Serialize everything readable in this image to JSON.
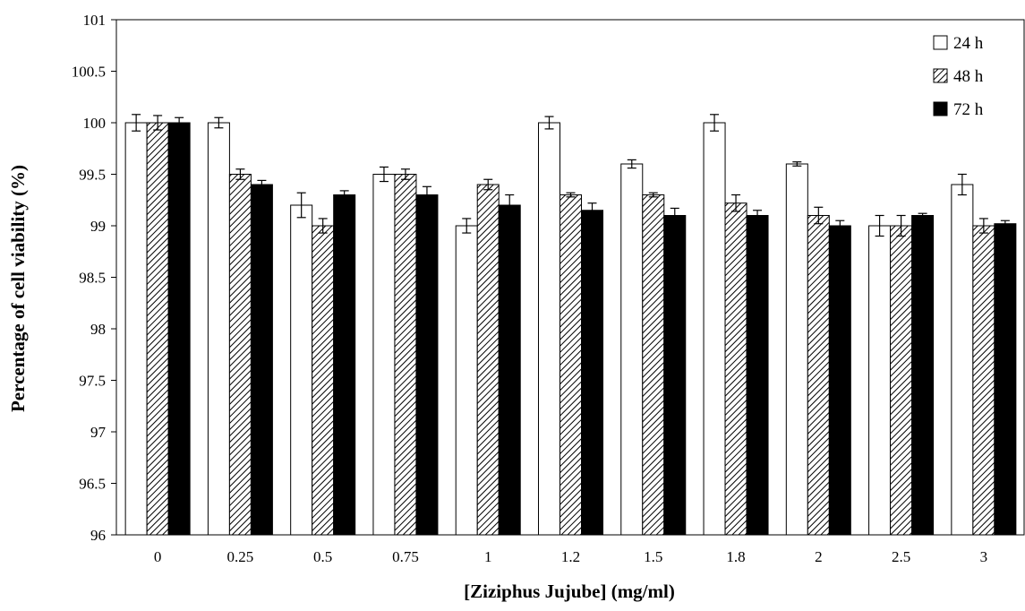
{
  "chart_data": {
    "type": "bar",
    "title": "",
    "xlabel": "[Ziziphus Jujube] (mg/ml)",
    "ylabel": "Percentage of cell viability (%)",
    "ylim": [
      96,
      101
    ],
    "yticks": [
      "96",
      "96.5",
      "97",
      "97.5",
      "98",
      "98.5",
      "99",
      "99.5",
      "100",
      "100.5",
      "101"
    ],
    "categories": [
      "0",
      "0.25",
      "0.5",
      "0.75",
      "1",
      "1.2",
      "1.5",
      "1.8",
      "2",
      "2.5",
      "3"
    ],
    "series": [
      {
        "name": "24 h",
        "fill": "white",
        "values": [
          100,
          100,
          99.2,
          99.5,
          99.0,
          100,
          99.6,
          100,
          99.6,
          99.0,
          99.4
        ],
        "errors": [
          0.08,
          0.05,
          0.12,
          0.07,
          0.07,
          0.06,
          0.04,
          0.08,
          0.02,
          0.1,
          0.1
        ]
      },
      {
        "name": "48 h",
        "fill": "hatched",
        "values": [
          100,
          99.5,
          99.0,
          99.5,
          99.4,
          99.3,
          99.3,
          99.22,
          99.1,
          99.0,
          99.0
        ],
        "errors": [
          0.07,
          0.05,
          0.07,
          0.05,
          0.05,
          0.02,
          0.02,
          0.08,
          0.08,
          0.1,
          0.07
        ]
      },
      {
        "name": "72 h",
        "fill": "black",
        "values": [
          100,
          99.4,
          99.3,
          99.3,
          99.2,
          99.15,
          99.1,
          99.1,
          99.0,
          99.1,
          99.02
        ],
        "errors": [
          0.05,
          0.04,
          0.04,
          0.08,
          0.1,
          0.07,
          0.07,
          0.05,
          0.05,
          0.02,
          0.03
        ]
      }
    ],
    "legend_position": "top-right",
    "grid": false,
    "colors": {
      "bar_border": "#000000",
      "solid": "#000000",
      "open": "#ffffff"
    }
  }
}
